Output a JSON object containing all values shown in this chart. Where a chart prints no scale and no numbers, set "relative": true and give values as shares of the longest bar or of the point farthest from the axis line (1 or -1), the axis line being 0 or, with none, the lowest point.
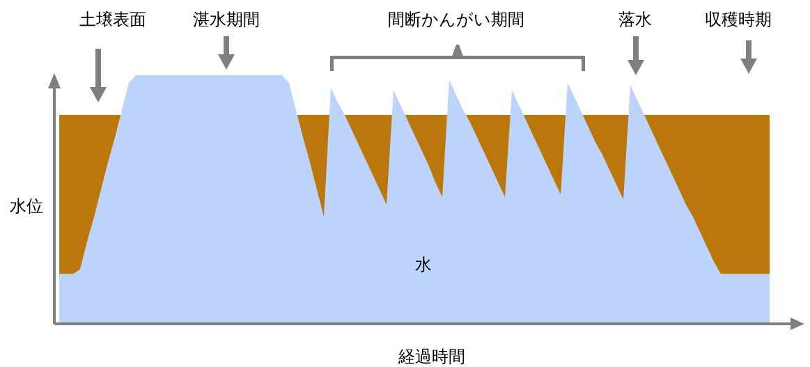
{
  "chart_data": {
    "type": "area",
    "relative": true,
    "xlabel": "経過時間",
    "ylabel": "水位",
    "annotations": [
      "土壌表面",
      "湛水期間",
      "間断かんがい期間",
      "落水",
      "収穫時期",
      "水"
    ],
    "categories": [
      null,
      null,
      null,
      null,
      null,
      null,
      null,
      null,
      null,
      null,
      null,
      null,
      null,
      null,
      null,
      null,
      null,
      null,
      null,
      null,
      null,
      null,
      null,
      null,
      null,
      null,
      null,
      null,
      null,
      null,
      null,
      null,
      null,
      null,
      null,
      null,
      null,
      null,
      null,
      null,
      null,
      null,
      null,
      null,
      null,
      null,
      null,
      null,
      null,
      null,
      null,
      null,
      null,
      null,
      null,
      null,
      null,
      null,
      null,
      null,
      null,
      null,
      null,
      null,
      null,
      null,
      null,
      null,
      null,
      null,
      null,
      null,
      null,
      null,
      null,
      null,
      null,
      null,
      null,
      null,
      null,
      null,
      null,
      null,
      null,
      null,
      null,
      null,
      null,
      null,
      null,
      null,
      null,
      null,
      null,
      null,
      null,
      null,
      null,
      null,
      null,
      null,
      null
    ],
    "series": [
      {
        "color": "#bcd4fb",
        "values": [
          0.2,
          0.2,
          0.2,
          0.22,
          0.33,
          0.43,
          0.54,
          0.65,
          0.75,
          0.86,
          0.97,
          1,
          1,
          1,
          1,
          1,
          1,
          1,
          1,
          1,
          1,
          1,
          1,
          1,
          1,
          1,
          1,
          1,
          1,
          1,
          1,
          1,
          1,
          0.97,
          0.86,
          0.75,
          0.65,
          0.54,
          0.43,
          0.95,
          0.89,
          0.84,
          0.78,
          0.72,
          0.66,
          0.6,
          0.54,
          0.48,
          0.94,
          0.88,
          0.82,
          0.76,
          0.7,
          0.64,
          0.57,
          0.51,
          0.98,
          0.92,
          0.86,
          0.81,
          0.75,
          0.69,
          0.63,
          0.57,
          0.51,
          0.94,
          0.88,
          0.82,
          0.76,
          0.7,
          0.64,
          0.58,
          0.52,
          0.97,
          0.91,
          0.85,
          0.79,
          0.73,
          0.68,
          0.62,
          0.56,
          0.5,
          0.96,
          0.9,
          0.84,
          0.78,
          0.72,
          0.66,
          0.6,
          0.54,
          0.48,
          0.43,
          0.37,
          0.31,
          0.25,
          0.2,
          0.2,
          0.2,
          0.2,
          0.2,
          0.2,
          0.2,
          0.2
        ]
      }
    ],
    "bands": [
      {
        "axis": "y",
        "from": 0.2,
        "to": 0.84,
        "color": "#bb770c"
      }
    ]
  }
}
